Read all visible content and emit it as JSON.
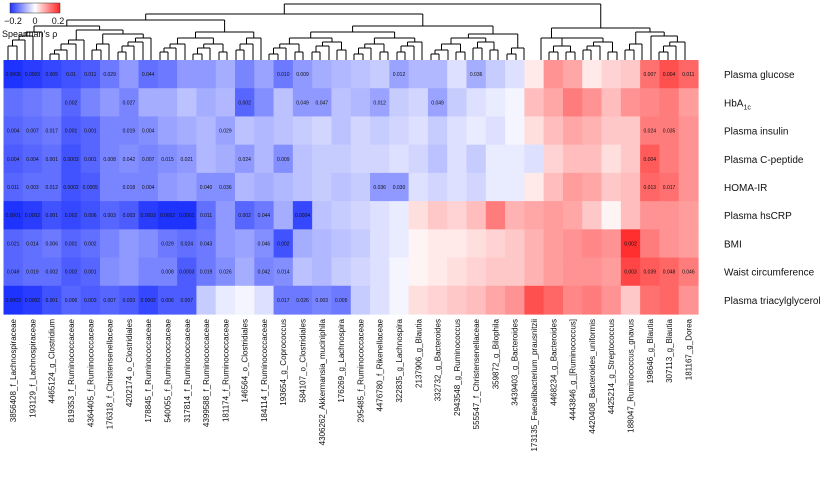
{
  "chart_data": {
    "type": "heatmap",
    "title": "",
    "colorscale": {
      "min": -0.2,
      "max": 0.2,
      "low": "#1f33ff",
      "mid": "#ffffff",
      "high": "#ff2424"
    },
    "legend": {
      "title": "Spearman's ρ",
      "ticks": [
        "−0.2",
        "0",
        "0.2"
      ]
    },
    "rows": [
      "Plasma glucose",
      "HbA",
      "Plasma insulin",
      "Plasma C-peptide",
      "HOMA-IR",
      "Plasma hsCRP",
      "BMI",
      "Waist circumference",
      "Plasma triacylglycerol"
    ],
    "row_subscript": {
      "HbA": "1c"
    },
    "columns": [
      "3856408_f_Lachnospiraceae",
      "193129_f_Lachnospiraceae",
      "4465124_g_Clostridium",
      "819353_f_Ruminococcaceae",
      "4364405_f_Ruminococcaceae",
      "176318_f_Christensenellaceae",
      "4202174_o_Clostridiales",
      "178845_f_Ruminococcaceae",
      "540055_f_Ruminococcaceae",
      "317814_f_Ruminococcaceae",
      "4399588_f_Ruminococcaceae",
      "181174_f_Ruminococcaceae",
      "146564_o_Clostridiales",
      "184114_f_Ruminococcaceae",
      "193654_g_Coprococcus",
      "584107_o_Clostridiales",
      "4306262_Akkermansia_muciniphila",
      "176269_g_Lachnospira",
      "295485_f_Ruminococcaceae",
      "4476780_f_Rikenellaceae",
      "322835_g_Lachnospira",
      "2137906_g_Blautia",
      "332732_g_Bacteroides",
      "2943548_g_Ruminococcus",
      "555547_f_Christensenellaceae",
      "359872_g_Bilophila",
      "3439403_g_Bacteroides",
      "173135_Faecalibacterium_prausnitzii",
      "4468234_g_Bacteroides",
      "4443846_g_[Ruminococcus]",
      "4420408_Bacteroides_uniformis",
      "4425214_g_Streptococcus",
      "188047_Ruminococcus_gnavus",
      "198646_g_Blautia",
      "307113_g_Blautia",
      "181167_g_Dorea"
    ],
    "values": [
      [
        -0.2,
        -0.19,
        -0.18,
        -0.17,
        -0.16,
        -0.13,
        -0.1,
        -0.14,
        -0.13,
        -0.1,
        -0.1,
        -0.08,
        -0.12,
        -0.09,
        -0.13,
        -0.1,
        -0.08,
        -0.07,
        -0.06,
        -0.05,
        -0.09,
        -0.07,
        -0.07,
        -0.03,
        -0.08,
        -0.05,
        -0.03,
        0.02,
        0.1,
        0.08,
        0.02,
        0.04,
        0.05,
        0.13,
        0.16,
        0.14
      ],
      [
        -0.14,
        -0.13,
        -0.12,
        -0.15,
        -0.12,
        -0.1,
        -0.12,
        -0.08,
        -0.08,
        -0.06,
        -0.08,
        -0.07,
        -0.15,
        -0.11,
        -0.06,
        -0.1,
        -0.1,
        -0.06,
        -0.07,
        -0.09,
        -0.05,
        -0.04,
        -0.09,
        -0.05,
        -0.03,
        -0.02,
        -0.01,
        0.06,
        0.08,
        0.12,
        0.1,
        0.06,
        0.1,
        0.11,
        0.12,
        0.09
      ],
      [
        -0.15,
        -0.14,
        -0.13,
        -0.16,
        -0.15,
        -0.12,
        -0.12,
        -0.11,
        -0.09,
        -0.08,
        -0.07,
        -0.09,
        -0.06,
        -0.07,
        -0.06,
        -0.05,
        -0.04,
        -0.06,
        -0.04,
        -0.05,
        -0.04,
        -0.03,
        -0.05,
        -0.03,
        -0.02,
        -0.03,
        -0.01,
        0.03,
        0.06,
        0.08,
        0.07,
        0.05,
        0.05,
        0.12,
        0.12,
        0.1
      ],
      [
        -0.16,
        -0.15,
        -0.14,
        -0.17,
        -0.15,
        -0.12,
        -0.11,
        -0.12,
        -0.11,
        -0.1,
        -0.07,
        -0.08,
        -0.1,
        -0.07,
        -0.11,
        -0.06,
        -0.05,
        -0.05,
        -0.04,
        -0.04,
        -0.03,
        -0.04,
        -0.06,
        -0.03,
        -0.05,
        -0.02,
        -0.02,
        -0.03,
        0.04,
        0.06,
        0.06,
        0.03,
        0.05,
        0.15,
        0.12,
        0.1
      ],
      [
        -0.15,
        -0.14,
        -0.14,
        -0.17,
        -0.16,
        -0.12,
        -0.12,
        -0.12,
        -0.1,
        -0.09,
        -0.11,
        -0.11,
        -0.07,
        -0.08,
        -0.07,
        -0.06,
        -0.05,
        -0.06,
        -0.05,
        -0.1,
        -0.1,
        -0.03,
        -0.04,
        -0.03,
        -0.04,
        -0.02,
        -0.02,
        0.02,
        0.06,
        0.09,
        0.08,
        0.05,
        0.06,
        0.14,
        0.13,
        0.1
      ],
      [
        -0.2,
        -0.19,
        -0.17,
        -0.18,
        -0.17,
        -0.15,
        -0.16,
        -0.19,
        -0.2,
        -0.2,
        -0.14,
        -0.1,
        -0.15,
        -0.13,
        -0.08,
        -0.18,
        -0.06,
        -0.05,
        -0.04,
        -0.03,
        -0.02,
        0.03,
        0.05,
        0.04,
        0.06,
        0.12,
        0.07,
        0.08,
        0.09,
        0.08,
        0.05,
        0.01,
        0.06,
        0.1,
        0.1,
        0.09
      ],
      [
        -0.15,
        -0.14,
        -0.13,
        -0.15,
        -0.14,
        -0.12,
        -0.1,
        -0.11,
        -0.13,
        -0.14,
        -0.13,
        -0.1,
        -0.09,
        -0.11,
        -0.17,
        -0.08,
        -0.07,
        -0.06,
        -0.05,
        -0.03,
        -0.02,
        0.01,
        0.02,
        0.02,
        0.03,
        0.04,
        0.05,
        0.07,
        0.09,
        0.1,
        0.11,
        0.1,
        0.19,
        0.12,
        0.1,
        0.09
      ],
      [
        -0.15,
        -0.14,
        -0.14,
        -0.16,
        -0.15,
        -0.11,
        -0.1,
        -0.12,
        -0.12,
        -0.16,
        -0.13,
        -0.11,
        -0.08,
        -0.12,
        -0.11,
        -0.06,
        -0.07,
        -0.05,
        -0.04,
        -0.03,
        -0.01,
        0.01,
        0.02,
        0.03,
        0.04,
        0.05,
        0.05,
        0.07,
        0.09,
        0.1,
        0.1,
        0.09,
        0.17,
        0.15,
        0.14,
        0.12
      ],
      [
        -0.2,
        -0.19,
        -0.17,
        -0.15,
        -0.16,
        -0.15,
        -0.16,
        -0.18,
        -0.16,
        -0.16,
        -0.05,
        -0.02,
        -0.01,
        -0.03,
        -0.13,
        -0.13,
        -0.12,
        -0.13,
        -0.05,
        -0.03,
        -0.01,
        0.03,
        0.04,
        0.05,
        0.06,
        0.08,
        0.1,
        0.16,
        0.14,
        0.11,
        0.12,
        0.1,
        0.05,
        0.13,
        0.14,
        0.1
      ]
    ],
    "pvalues": [
      [
        "0.0006",
        "0.0003",
        "0.005",
        "0.01",
        "0.011",
        "0.029",
        "",
        "0.044",
        "",
        "",
        "",
        "",
        "",
        "",
        "0.010",
        "0.009",
        "",
        "",
        "",
        "",
        "0.012",
        "",
        "",
        "",
        "0.036",
        "",
        "",
        "",
        "",
        "",
        "",
        "",
        "",
        "0.007",
        "0.004",
        "0.011"
      ],
      [
        "",
        "",
        "",
        "0.002",
        "",
        "",
        "0.027",
        "",
        "",
        "",
        "",
        "",
        "0.002",
        "",
        "",
        "0.049",
        "0.047",
        "",
        "",
        "0.012",
        "",
        "",
        "0.049",
        "",
        "",
        "",
        "",
        "",
        "",
        "",
        "",
        "",
        "",
        "",
        "",
        ""
      ],
      [
        "0.004",
        "0.007",
        "0.017",
        "0.001",
        "0.001",
        "",
        "0.019",
        "0.004",
        "",
        "",
        "",
        "0.029",
        "",
        "",
        "",
        "",
        "",
        "",
        "",
        "",
        "",
        "",
        "",
        "",
        "",
        "",
        "",
        "",
        "",
        "",
        "",
        "",
        "",
        "0.024",
        "0.035",
        ""
      ],
      [
        "0.004",
        "0.004",
        "0.001",
        "0.0003",
        "0.001",
        "0.008",
        "0.042",
        "0.007",
        "0.015",
        "0.021",
        "",
        "",
        "0.024",
        "",
        "0.009",
        "",
        "",
        "",
        "",
        "",
        "",
        "",
        "",
        "",
        "",
        "",
        "",
        "",
        "",
        "",
        "",
        "",
        "",
        "0.004",
        "",
        ""
      ],
      [
        "0.011",
        "0.003",
        "0.012",
        "0.0002",
        "0.0005",
        "",
        "0.018",
        "0.004",
        "",
        "",
        "0.040",
        "0.036",
        "",
        "",
        "",
        "",
        "",
        "",
        "",
        "0.036",
        "0.030",
        "",
        "",
        "",
        "",
        "",
        "",
        "",
        "",
        "",
        "",
        "",
        "",
        "0.013",
        "0.017",
        ""
      ],
      [
        "0.0001",
        "0.0002",
        "0.001",
        "0.002",
        "0.006",
        "0.003",
        "0.003",
        "0.0003",
        "0.0002",
        "0.0001",
        "0.011",
        "",
        "0.002",
        "0.044",
        "",
        "0.0004",
        "",
        "",
        "",
        "",
        "",
        "",
        "",
        "",
        "",
        "",
        "",
        "",
        "",
        "",
        "",
        "",
        "",
        "",
        "",
        ""
      ],
      [
        "0.021",
        "0.014",
        "0.006",
        "0.001",
        "0.002",
        "",
        "",
        "",
        "0.029",
        "0.024",
        "0.043",
        "",
        "",
        "0.046",
        "0.002",
        "",
        "",
        "",
        "",
        "",
        "",
        "",
        "",
        "",
        "",
        "",
        "",
        "",
        "",
        "",
        "",
        "",
        "0.002",
        "",
        "",
        ""
      ],
      [
        "0.049",
        "0.019",
        "0.002",
        "0.002",
        "0.001",
        "",
        "",
        "",
        "0.008",
        "0.0003",
        "0.019",
        "0.026",
        "",
        "0.042",
        "0.014",
        "",
        "",
        "",
        "",
        "",
        "",
        "",
        "",
        "",
        "",
        "",
        "",
        "",
        "",
        "",
        "",
        "",
        "0.003",
        "0.039",
        "0.048",
        "0.046"
      ],
      [
        "0.0003",
        "0.0002",
        "0.001",
        "0.006",
        "0.003",
        "0.007",
        "0.003",
        "0.0002",
        "0.006",
        "0.007",
        "",
        "",
        "",
        "",
        "0.017",
        "0.026",
        "0.003",
        "0.005",
        "",
        "",
        "",
        "",
        "",
        "",
        "",
        "",
        "",
        "",
        "",
        "",
        "",
        "",
        "",
        "",
        "",
        ""
      ]
    ],
    "dendrogram": "hierarchical clustering of columns, drawn at top"
  }
}
